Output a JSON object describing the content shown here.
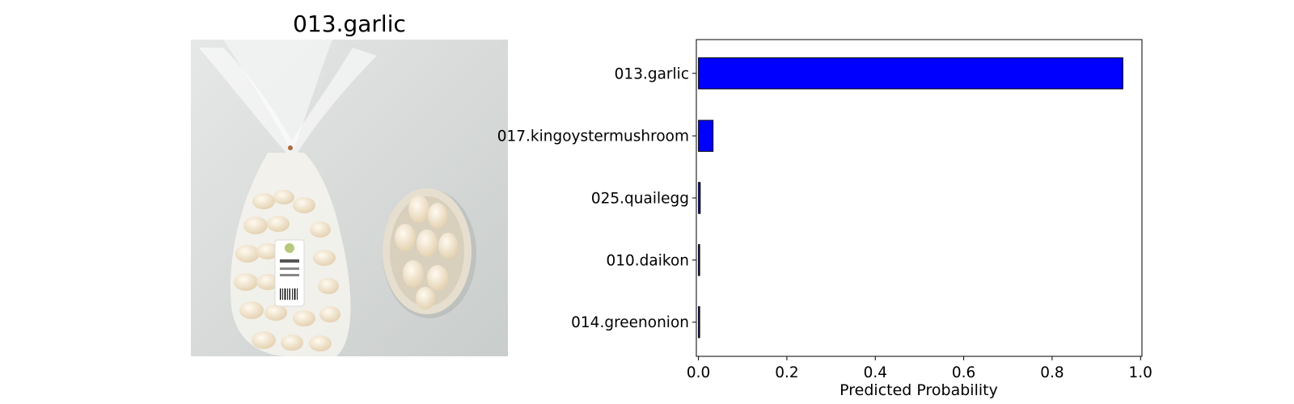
{
  "photo": {
    "title": "013.garlic",
    "icon": "garlic-photo",
    "colors": {
      "background": "#cfd3d2",
      "clove": "#f3ead7",
      "bowl": "#e4ddcd",
      "label": "#ffffff"
    }
  },
  "chart_data": {
    "type": "bar",
    "orientation": "horizontal",
    "categories": [
      "013.garlic",
      "017.kingoystermushroom",
      "025.quailegg",
      "010.daikon",
      "014.greenonion"
    ],
    "values": [
      0.96,
      0.033,
      0.004,
      0.002,
      0.002
    ],
    "xlabel": "Predicted Probability",
    "xlim": [
      0.0,
      1.0
    ],
    "xticks": [
      "0.0",
      "0.2",
      "0.4",
      "0.6",
      "0.8",
      "1.0"
    ],
    "grid": false,
    "bar_color": "#0000ff",
    "edge_color": "#000000"
  }
}
